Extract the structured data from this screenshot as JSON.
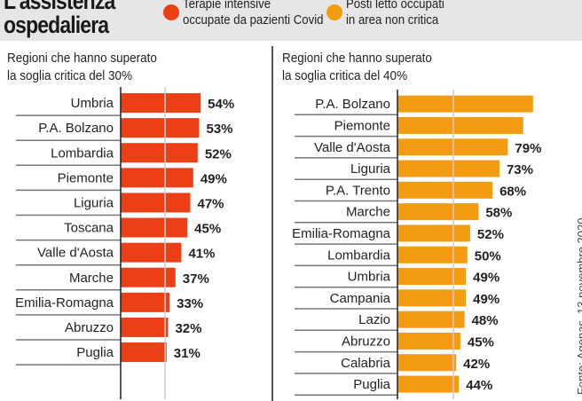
{
  "header": {
    "title_line1": "L'assistenza",
    "title_line2": "ospedaliera",
    "legend": [
      {
        "line1": "Terapie intensive",
        "line2": "occupate da pazienti Covid",
        "color": "#ec3f16"
      },
      {
        "line1": "Posti letto occupati",
        "line2": "in area non critica",
        "color": "#f39c12"
      }
    ]
  },
  "source": "Fonte: Agenas, 13 novembre 2020",
  "chart_data": [
    {
      "type": "bar",
      "orientation": "horizontal",
      "subtitle_line1": "Regioni che hanno superato",
      "subtitle_line2": "la soglia critica del 30%",
      "threshold": 30,
      "color": "#ec3f16",
      "categories": [
        "Umbria",
        "P.A. Bolzano",
        "Lombardia",
        "Piemonte",
        "Liguria",
        "Toscana",
        "Valle d'Aosta",
        "Marche",
        "Emilia-Romagna",
        "Abruzzo",
        "Puglia"
      ],
      "values": [
        54,
        53,
        52,
        49,
        47,
        45,
        41,
        37,
        33,
        32,
        31
      ],
      "labels": [
        "54%",
        "53%",
        "52%",
        "49%",
        "47%",
        "45%",
        "41%",
        "37%",
        "33%",
        "32%",
        "31%"
      ]
    },
    {
      "type": "bar",
      "orientation": "horizontal",
      "subtitle_line1": "Regioni che hanno superato",
      "subtitle_line2": "la soglia critica del 40%",
      "threshold": 40,
      "color": "#f39c12",
      "categories": [
        "P.A. Bolzano",
        "Piemonte",
        "Valle d'Aosta",
        "Liguria",
        "P.A. Trento",
        "Marche",
        "Emilia-Romagna",
        "Lombardia",
        "Umbria",
        "Campania",
        "Lazio",
        "Abruzzo",
        "Calabria",
        "Puglia"
      ],
      "values": [
        97,
        90,
        79,
        73,
        68,
        58,
        52,
        50,
        49,
        49,
        48,
        45,
        42,
        44
      ],
      "labels": [
        "",
        "",
        "79%",
        "73%",
        "68%",
        "58%",
        "52%",
        "50%",
        "49%",
        "49%",
        "48%",
        "45%",
        "42%",
        "44%"
      ]
    }
  ]
}
